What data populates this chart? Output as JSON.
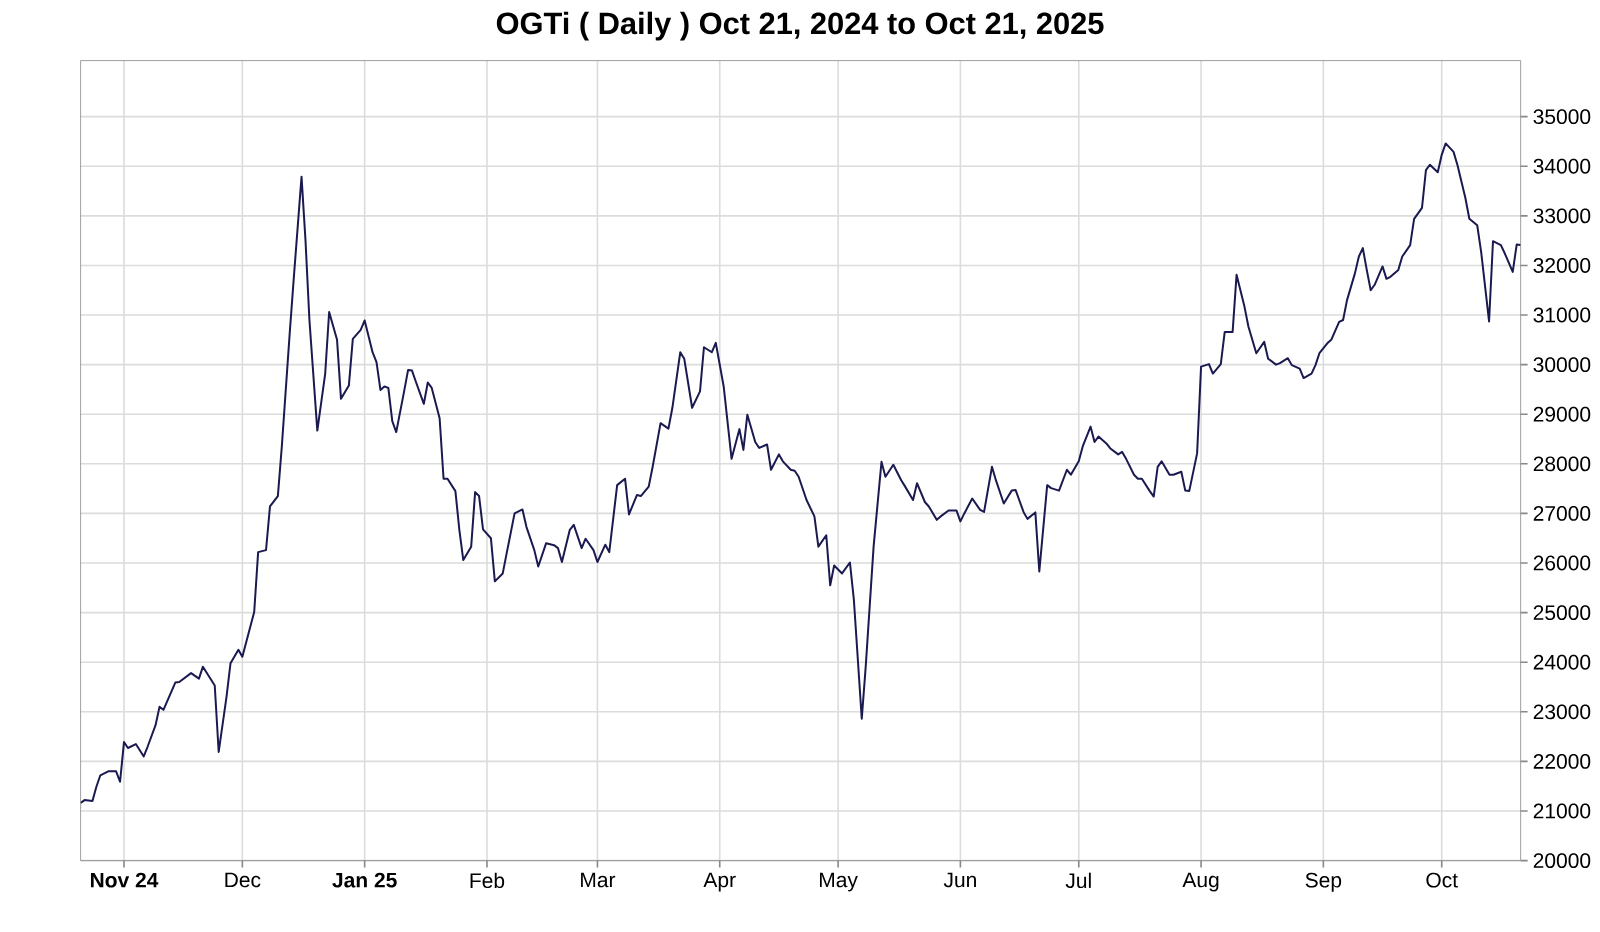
{
  "chart_data": {
    "type": "line",
    "title": "OGTi ( Daily ) Oct 21, 2024 to Oct 21, 2025",
    "color": "#1a1a50",
    "grid": true,
    "xlim": [
      "2024-10-21",
      "2025-10-21"
    ],
    "ylim": [
      20000,
      36130
    ],
    "xticks": [
      {
        "value": "2024-11-01",
        "label": "Nov 24"
      },
      {
        "value": "2024-12-01",
        "label": "Dec"
      },
      {
        "value": "2025-01-01",
        "label": "Jan 25"
      },
      {
        "value": "2025-02-01",
        "label": "Feb"
      },
      {
        "value": "2025-03-01",
        "label": "Mar"
      },
      {
        "value": "2025-04-01",
        "label": "Apr"
      },
      {
        "value": "2025-05-01",
        "label": "May"
      },
      {
        "value": "2025-06-01",
        "label": "Jun"
      },
      {
        "value": "2025-07-01",
        "label": "Jul"
      },
      {
        "value": "2025-08-01",
        "label": "Aug"
      },
      {
        "value": "2025-09-01",
        "label": "Sep"
      },
      {
        "value": "2025-10-01",
        "label": "Oct"
      }
    ],
    "yticks": [
      20000,
      21000,
      22000,
      23000,
      24000,
      25000,
      26000,
      27000,
      28000,
      29000,
      30000,
      31000,
      32000,
      33000,
      34000,
      35000
    ],
    "x": [
      "2024-10-21",
      "2024-10-22",
      "2024-10-24",
      "2024-10-25",
      "2024-10-26",
      "2024-10-28",
      "2024-10-30",
      "2024-10-31",
      "2024-11-01",
      "2024-11-02",
      "2024-11-04",
      "2024-11-06",
      "2024-11-07",
      "2024-11-09",
      "2024-11-10",
      "2024-11-11",
      "2024-11-14",
      "2024-11-15",
      "2024-11-18",
      "2024-11-20",
      "2024-11-21",
      "2024-11-24",
      "2024-11-25",
      "2024-11-27",
      "2024-11-28",
      "2024-11-30",
      "2024-12-01",
      "2024-12-04",
      "2024-12-05",
      "2024-12-07",
      "2024-12-08",
      "2024-12-10",
      "2024-12-11",
      "2024-12-13",
      "2024-12-14",
      "2024-12-16",
      "2024-12-17",
      "2024-12-18",
      "2024-12-20",
      "2024-12-22",
      "2024-12-23",
      "2024-12-25",
      "2024-12-26",
      "2024-12-28",
      "2024-12-29",
      "2024-12-31",
      "2025-01-01",
      "2025-01-03",
      "2025-01-04",
      "2025-01-05",
      "2025-01-06",
      "2025-01-07",
      "2025-01-08",
      "2025-01-09",
      "2025-01-11",
      "2025-01-12",
      "2025-01-13",
      "2025-01-14",
      "2025-01-16",
      "2025-01-17",
      "2025-01-18",
      "2025-01-20",
      "2025-01-21",
      "2025-01-22",
      "2025-01-24",
      "2025-01-25",
      "2025-01-26",
      "2025-01-28",
      "2025-01-29",
      "2025-01-30",
      "2025-01-31",
      "2025-02-02",
      "2025-02-03",
      "2025-02-05",
      "2025-02-06",
      "2025-02-08",
      "2025-02-10",
      "2025-02-11",
      "2025-02-13",
      "2025-02-14",
      "2025-02-16",
      "2025-02-18",
      "2025-02-19",
      "2025-02-20",
      "2025-02-22",
      "2025-02-23",
      "2025-02-25",
      "2025-02-26",
      "2025-02-28",
      "2025-03-01",
      "2025-03-03",
      "2025-03-04",
      "2025-03-06",
      "2025-03-08",
      "2025-03-09",
      "2025-03-11",
      "2025-03-12",
      "2025-03-14",
      "2025-03-15",
      "2025-03-17",
      "2025-03-19",
      "2025-03-20",
      "2025-03-22",
      "2025-03-23",
      "2025-03-25",
      "2025-03-27",
      "2025-03-28",
      "2025-03-30",
      "2025-03-31",
      "2025-04-02",
      "2025-04-04",
      "2025-04-06",
      "2025-04-07",
      "2025-04-08",
      "2025-04-10",
      "2025-04-11",
      "2025-04-13",
      "2025-04-14",
      "2025-04-16",
      "2025-04-17",
      "2025-04-19",
      "2025-04-20",
      "2025-04-21",
      "2025-04-23",
      "2025-04-25",
      "2025-04-26",
      "2025-04-28",
      "2025-04-29",
      "2025-04-30",
      "2025-05-02",
      "2025-05-04",
      "2025-05-05",
      "2025-05-07",
      "2025-05-08",
      "2025-05-10",
      "2025-05-12",
      "2025-05-13",
      "2025-05-15",
      "2025-05-17",
      "2025-05-18",
      "2025-05-20",
      "2025-05-21",
      "2025-05-23",
      "2025-05-24",
      "2025-05-26",
      "2025-05-27",
      "2025-05-29",
      "2025-05-31",
      "2025-06-01",
      "2025-06-02",
      "2025-06-04",
      "2025-06-06",
      "2025-06-07",
      "2025-06-09",
      "2025-06-10",
      "2025-06-12",
      "2025-06-14",
      "2025-06-15",
      "2025-06-17",
      "2025-06-18",
      "2025-06-20",
      "2025-06-21",
      "2025-06-23",
      "2025-06-24",
      "2025-06-26",
      "2025-06-28",
      "2025-06-29",
      "2025-07-01",
      "2025-07-02",
      "2025-07-04",
      "2025-07-05",
      "2025-07-06",
      "2025-07-08",
      "2025-07-09",
      "2025-07-11",
      "2025-07-12",
      "2025-07-13",
      "2025-07-15",
      "2025-07-16",
      "2025-07-17",
      "2025-07-19",
      "2025-07-20",
      "2025-07-21",
      "2025-07-22",
      "2025-07-24",
      "2025-07-25",
      "2025-07-27",
      "2025-07-28",
      "2025-07-29",
      "2025-07-31",
      "2025-08-01",
      "2025-08-03",
      "2025-08-04",
      "2025-08-06",
      "2025-08-07",
      "2025-08-09",
      "2025-08-10",
      "2025-08-12",
      "2025-08-13",
      "2025-08-15",
      "2025-08-17",
      "2025-08-18",
      "2025-08-20",
      "2025-08-21",
      "2025-08-23",
      "2025-08-24",
      "2025-08-26",
      "2025-08-27",
      "2025-08-29",
      "2025-08-30",
      "2025-08-31",
      "2025-09-02",
      "2025-09-03",
      "2025-09-05",
      "2025-09-06",
      "2025-09-07",
      "2025-09-09",
      "2025-09-10",
      "2025-09-11",
      "2025-09-12",
      "2025-09-13",
      "2025-09-14",
      "2025-09-16",
      "2025-09-17",
      "2025-09-18",
      "2025-09-20",
      "2025-09-21",
      "2025-09-23",
      "2025-09-24",
      "2025-09-26",
      "2025-09-27",
      "2025-09-28",
      "2025-09-30",
      "2025-10-01",
      "2025-10-02",
      "2025-10-04",
      "2025-10-05",
      "2025-10-07",
      "2025-10-08",
      "2025-10-10",
      "2025-10-11",
      "2025-10-13",
      "2025-10-14",
      "2025-10-16",
      "2025-10-17",
      "2025-10-19",
      "2025-10-20",
      "2025-10-21"
    ],
    "values": [
      21160,
      21220,
      21200,
      21490,
      21720,
      21800,
      21800,
      21590,
      22390,
      22270,
      22350,
      22100,
      22300,
      22730,
      23100,
      23040,
      23590,
      23600,
      23780,
      23670,
      23910,
      23530,
      22190,
      23310,
      23980,
      24250,
      24110,
      25010,
      26220,
      26260,
      27140,
      27350,
      28350,
      30630,
      31710,
      33790,
      32510,
      30900,
      28670,
      29820,
      31060,
      30500,
      29310,
      29580,
      30520,
      30700,
      30890,
      30250,
      30050,
      29490,
      29560,
      29530,
      28860,
      28640,
      29460,
      29890,
      29880,
      29650,
      29210,
      29640,
      29530,
      28920,
      27700,
      27700,
      27450,
      26670,
      26060,
      26330,
      27430,
      27350,
      26680,
      26500,
      25630,
      25790,
      26200,
      27000,
      27080,
      26730,
      26260,
      25930,
      26400,
      26360,
      26300,
      26020,
      26670,
      26770,
      26300,
      26490,
      26260,
      26020,
      26370,
      26220,
      27570,
      27700,
      26980,
      27370,
      27350,
      27540,
      27940,
      28820,
      28710,
      29130,
      30250,
      30120,
      29130,
      29460,
      30350,
      30250,
      30440,
      29560,
      28100,
      28700,
      28280,
      28990,
      28440,
      28320,
      28390,
      27880,
      28190,
      28050,
      27880,
      27860,
      27740,
      27270,
      26940,
      26330,
      26560,
      25550,
      25950,
      25790,
      26010,
      25260,
      22860,
      23910,
      26330,
      28040,
      27740,
      27980,
      27670,
      27540,
      27270,
      27610,
      27230,
      27140,
      26870,
      26940,
      27060,
      27060,
      26840,
      27000,
      27300,
      27070,
      27030,
      27940,
      27670,
      27200,
      27460,
      27470,
      27030,
      26890,
      27020,
      25830,
      27570,
      27510,
      27460,
      27880,
      27780,
      28050,
      28350,
      28750,
      28440,
      28550,
      28410,
      28310,
      28190,
      28240,
      28100,
      27780,
      27700,
      27700,
      27450,
      27340,
      27940,
      28050,
      27780,
      27780,
      27840,
      27460,
      27450,
      28210,
      29960,
      30010,
      29820,
      30010,
      30660,
      30660,
      31810,
      31170,
      30770,
      30230,
      30460,
      30120,
      30000,
      30030,
      30130,
      29990,
      29920,
      29730,
      29820,
      29990,
      30230,
      30430,
      30500,
      30860,
      30900,
      31300,
      31840,
      32180,
      32350,
      31910,
      31500,
      31610,
      31980,
      31730,
      31770,
      31910,
      32180,
      32410,
      32940,
      33160,
      33920,
      34030,
      33880,
      34230,
      34460,
      34290,
      34020,
      33360,
      32940,
      32810,
      32270,
      30870,
      32490,
      32410,
      32240,
      31870,
      32420,
      32410
    ]
  }
}
